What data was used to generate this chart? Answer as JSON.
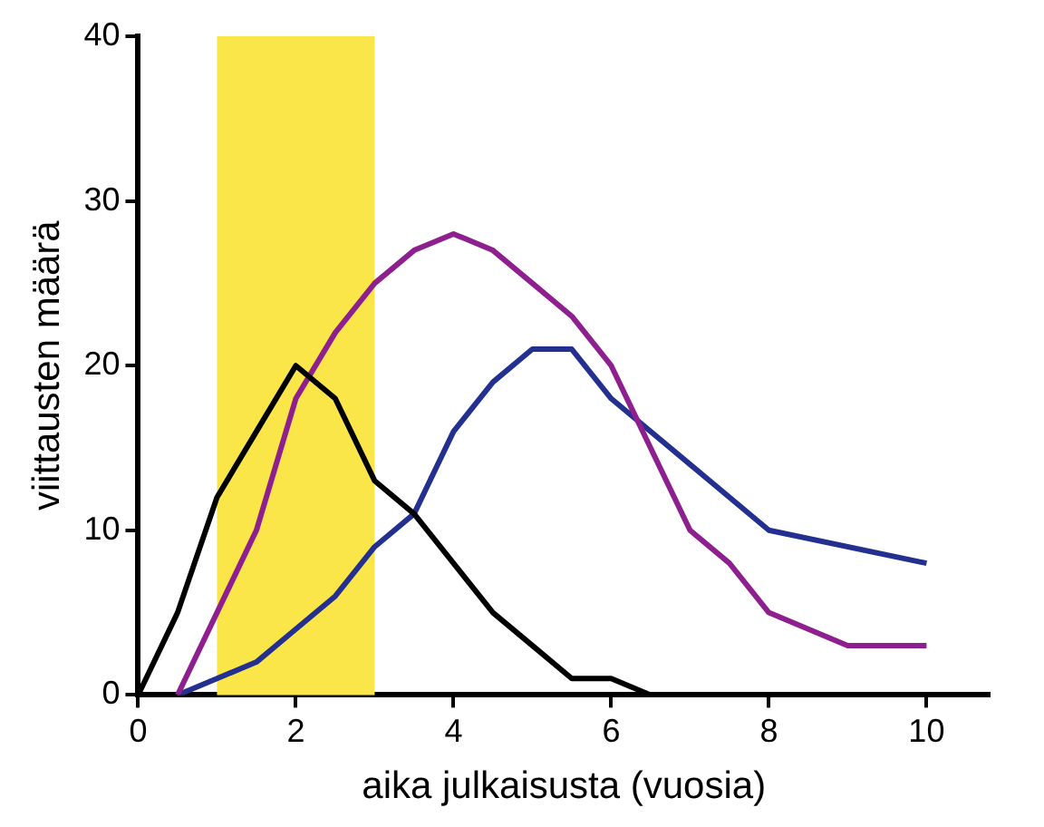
{
  "chart_data": {
    "type": "line",
    "xlabel": "aika julkaisusta (vuosia)",
    "ylabel": "viittausten määrä",
    "xlim": [
      0,
      10.8
    ],
    "xticks": [
      0,
      2,
      4,
      6,
      8,
      10
    ],
    "ylim": [
      0,
      40
    ],
    "yticks": [
      0,
      10,
      20,
      30,
      40
    ],
    "grid": false,
    "legend": false,
    "marker": "none",
    "line_style": "solid",
    "bands": [
      {
        "axis": "x",
        "from": 1,
        "to": 3,
        "color": "#fbe64a"
      }
    ],
    "series": [
      {
        "color": "#000000",
        "x": [
          0,
          0.5,
          1,
          1.5,
          2,
          2.5,
          3,
          3.5,
          4,
          4.5,
          5,
          5.5,
          6,
          6.5
        ],
        "values": [
          0,
          5,
          12,
          16,
          20,
          18,
          13,
          11,
          8,
          5,
          3,
          1,
          1,
          0
        ]
      },
      {
        "color": "#8e1f8e",
        "x": [
          0.5,
          1,
          1.5,
          2,
          2.5,
          3,
          3.5,
          4,
          4.5,
          5,
          5.5,
          6,
          7,
          7.5,
          8,
          9,
          10
        ],
        "values": [
          0,
          5,
          10,
          18,
          22,
          25,
          27,
          28,
          27,
          25,
          23,
          20,
          10,
          8,
          5,
          3,
          3
        ]
      },
      {
        "color": "#23308f",
        "x": [
          0.5,
          1,
          1.5,
          2,
          2.5,
          3,
          3.5,
          4,
          4.5,
          5,
          5.5,
          6,
          7,
          8,
          10
        ],
        "values": [
          0,
          1,
          2,
          4,
          6,
          9,
          11,
          16,
          19,
          21,
          21,
          18,
          14,
          10,
          8
        ]
      }
    ]
  }
}
